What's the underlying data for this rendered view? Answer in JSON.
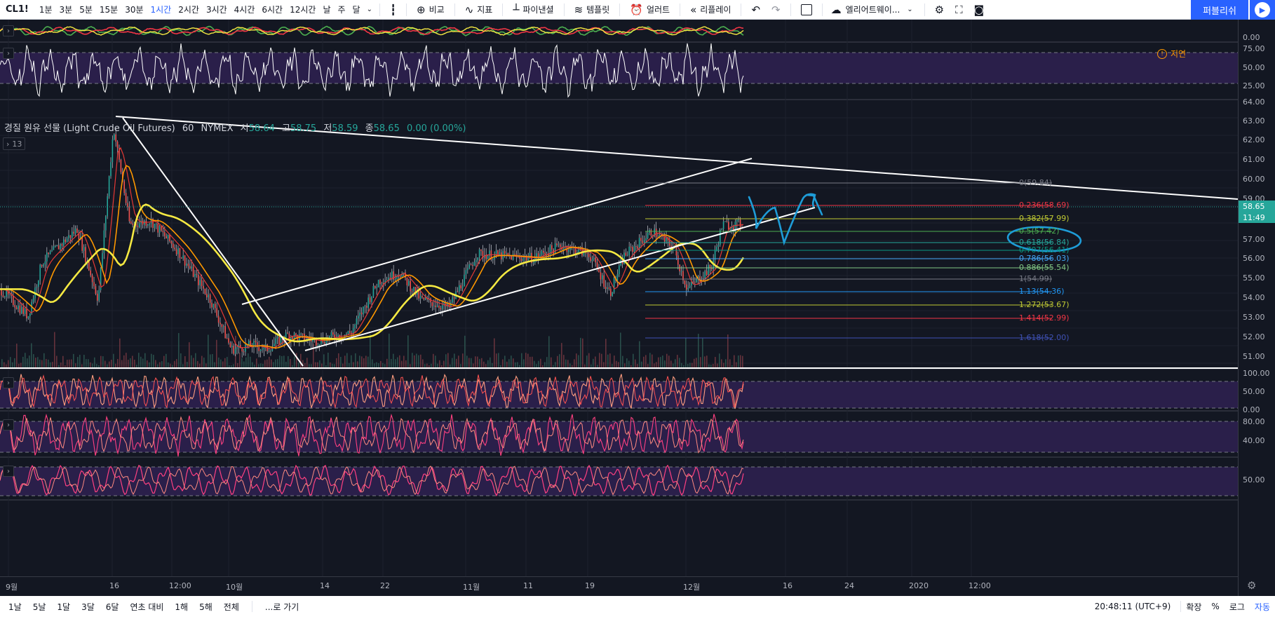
{
  "toolbar": {
    "symbol": "CL1!",
    "timeframes": [
      "1분",
      "3분",
      "5분",
      "15분",
      "30분",
      "1시간",
      "2시간",
      "3시간",
      "4시간",
      "6시간",
      "12시간",
      "날",
      "주",
      "달"
    ],
    "active_timeframe": "1시간",
    "compare_label": "비교",
    "indicators_label": "지표",
    "financials_label": "파이낸셜",
    "templates_label": "템플릿",
    "alert_label": "얼러트",
    "replay_label": "리플레이",
    "layout_label": "엘리어트웨이...",
    "publish_label": "퍼블리쉬"
  },
  "legend": {
    "name": "경질 원유 선물 (Light Crude Oil Futures)",
    "interval": "60",
    "exchange": "NYMEX",
    "open_label": "시",
    "open": "58.64",
    "high_label": "고",
    "high": "58.75",
    "low_label": "저",
    "low": "58.59",
    "close_label": "종",
    "close": "58.65",
    "change": "0.00 (0.00%)",
    "collapsed_count": "13"
  },
  "delay_label": "지연",
  "price_scale": {
    "main_ticks": [
      "64.00",
      "63.00",
      "62.00",
      "61.00",
      "60.00",
      "59.00",
      "57.00",
      "56.00",
      "55.00",
      "54.00",
      "53.00",
      "52.00",
      "51.00"
    ],
    "top_pane_ticks": [
      "0.00"
    ],
    "rsi_ticks": [
      "75.00",
      "50.00",
      "25.00"
    ],
    "osc1_ticks": [
      "100.00",
      "50.00",
      "0.00"
    ],
    "osc2_ticks": [
      "80.00",
      "40.00"
    ],
    "osc3_ticks": [
      "50.00"
    ],
    "last_price": "58.65",
    "countdown": "11:49"
  },
  "fib_levels": [
    {
      "label": "0(59.84)",
      "color": "#787b86"
    },
    {
      "label": "0.236(58.69)",
      "color": "#f23645"
    },
    {
      "label": "0.382(57.99)",
      "color": "#c0ca33"
    },
    {
      "label": "0.5(57.42)",
      "color": "#4caf50"
    },
    {
      "label": "0.618(56.84)",
      "color": "#26a69a"
    },
    {
      "label": "0.707(56.41)",
      "color": "#089981"
    },
    {
      "label": "0.786(56.03)",
      "color": "#42a5f5"
    },
    {
      "label": "0.886(55.54)",
      "color": "#81c784"
    },
    {
      "label": "1(54.99)",
      "color": "#787b86"
    },
    {
      "label": "1.13(54.36)",
      "color": "#2196f3"
    },
    {
      "label": "1.272(53.67)",
      "color": "#c0ca33"
    },
    {
      "label": "1.414(52.99)",
      "color": "#f23645"
    },
    {
      "label": "1.618(52.00)",
      "color": "#3f51b5"
    }
  ],
  "time_scale": [
    "9월",
    "16",
    "12:00",
    "10월",
    "14",
    "22",
    "11월",
    "11",
    "19",
    "12월",
    "16",
    "24",
    "2020",
    "12:00"
  ],
  "bottom_bar": {
    "ranges": [
      "1날",
      "5날",
      "1달",
      "3달",
      "6달",
      "연초 대비",
      "1해",
      "5해",
      "전체"
    ],
    "goto_label": "...로 가기",
    "clock": "20:48:11 (UTC+9)",
    "extend_label": "확장",
    "percent_label": "%",
    "log_label": "로그",
    "auto_label": "자동"
  },
  "colors": {
    "background": "#131722",
    "pane_fill": "#2a1f4a",
    "price_line": "#26a69a",
    "annotation_blue": "#1e9cd7",
    "ma_yellow": "#f5e942",
    "ma_orange": "#ff9800",
    "ma_red": "#e53935"
  }
}
